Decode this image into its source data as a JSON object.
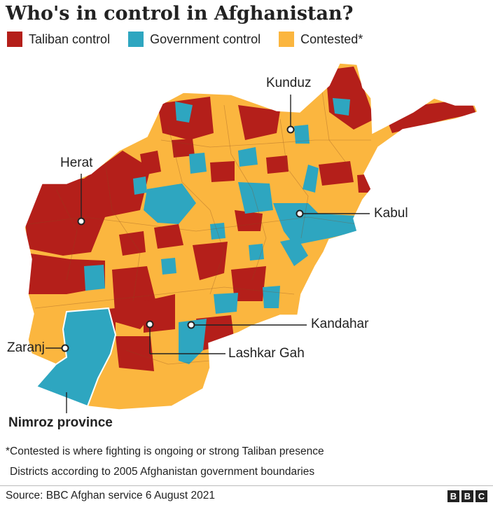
{
  "title": "Who's in control in Afghanistan?",
  "legend": [
    {
      "label": "Taliban control",
      "color": "#b41f1a"
    },
    {
      "label": "Government control",
      "color": "#2ea6c0"
    },
    {
      "label": "Contested*",
      "color": "#fbb63f"
    }
  ],
  "cities": {
    "kunduz": "Kunduz",
    "herat": "Herat",
    "kabul": "Kabul",
    "kandahar": "Kandahar",
    "lashkar_gah": "Lashkar Gah",
    "zaranj": "Zaranj"
  },
  "province": "Nimroz province",
  "footnotes": {
    "contested": "*Contested is where fighting is ongoing or strong Taliban presence",
    "districts": "Districts according to 2005 Afghanistan government boundaries"
  },
  "source": "Source: BBC Afghan service 6 August 2021",
  "logo_letters": [
    "B",
    "B",
    "C"
  ]
}
